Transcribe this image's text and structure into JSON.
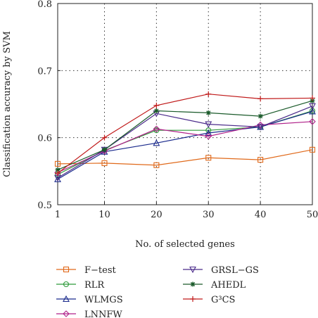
{
  "chart_data": {
    "type": "line",
    "xlabel": "No. of selected genes",
    "ylabel": "Classification accuracy by SVM",
    "x": [
      1,
      10,
      20,
      30,
      40,
      50
    ],
    "x_ticks": [
      "1",
      "10",
      "20",
      "30",
      "40",
      "50"
    ],
    "y_ticks": [
      "0.5",
      "0.6",
      "0.7",
      "0.8"
    ],
    "xlim": [
      1,
      50
    ],
    "ylim": [
      0.5,
      0.8
    ],
    "grid": "dotted",
    "legend": "bottom",
    "series": [
      {
        "name": "F−test",
        "color": "#e0691a",
        "marker": "square",
        "values": [
          0.561,
          0.562,
          0.559,
          0.57,
          0.567,
          0.582
        ]
      },
      {
        "name": "RLR",
        "color": "#2e9a3a",
        "marker": "circle",
        "values": [
          0.545,
          0.581,
          0.611,
          0.611,
          0.616,
          0.64
        ]
      },
      {
        "name": "WLMGS",
        "color": "#1a2a8c",
        "marker": "triangle-up",
        "values": [
          0.538,
          0.579,
          0.592,
          0.607,
          0.616,
          0.639
        ]
      },
      {
        "name": "LNNFW",
        "color": "#b0228a",
        "marker": "diamond",
        "values": [
          0.548,
          0.58,
          0.613,
          0.602,
          0.619,
          0.624
        ]
      },
      {
        "name": "GRSL−GS",
        "color": "#4a2a8a",
        "marker": "triangle-down",
        "values": [
          0.54,
          0.582,
          0.636,
          0.62,
          0.616,
          0.647
        ]
      },
      {
        "name": "AHEDL",
        "color": "#1a5a2a",
        "marker": "star",
        "values": [
          0.552,
          0.582,
          0.64,
          0.637,
          0.632,
          0.655
        ]
      },
      {
        "name": "G³CS",
        "color": "#c01a1a",
        "marker": "plus",
        "values": [
          0.547,
          0.6,
          0.648,
          0.665,
          0.658,
          0.659
        ]
      }
    ]
  }
}
